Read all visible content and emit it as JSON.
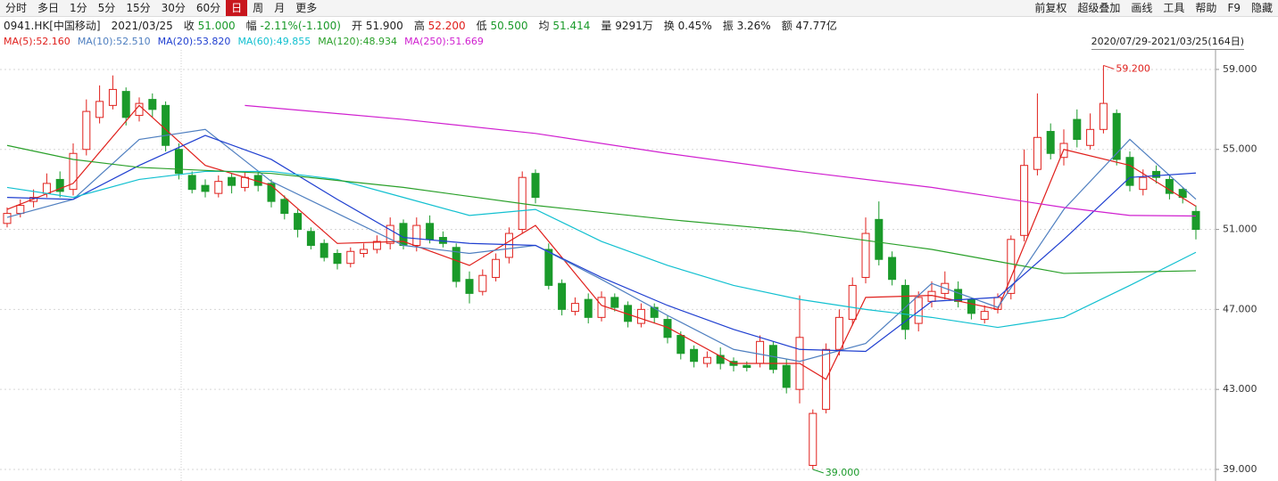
{
  "toolbar": {
    "left": [
      "分时",
      "多日",
      "1分",
      "5分",
      "15分",
      "30分",
      "60分",
      "日",
      "周",
      "月",
      "更多"
    ],
    "selected_index": 7,
    "right": [
      "前复权",
      "超级叠加",
      "画线",
      "工具",
      "帮助",
      "F9",
      "隐藏"
    ]
  },
  "quote": {
    "symbol": "0941.HK[中国移动]",
    "date": "2021/03/25",
    "fields": [
      {
        "label": "收",
        "value": "51.000",
        "color": "#1a9a2a"
      },
      {
        "label": "幅",
        "value": "-2.11%(-1.100)",
        "color": "#1a9a2a"
      },
      {
        "label": "开",
        "value": "51.900",
        "color": "#222222"
      },
      {
        "label": "高",
        "value": "52.200",
        "color": "#e0201c"
      },
      {
        "label": "低",
        "value": "50.500",
        "color": "#1a9a2a"
      },
      {
        "label": "均",
        "value": "51.414",
        "color": "#1a9a2a"
      },
      {
        "label": "量",
        "value": "9291万",
        "color": "#222222"
      },
      {
        "label": "换",
        "value": "0.45%",
        "color": "#222222"
      },
      {
        "label": "振",
        "value": "3.26%",
        "color": "#222222"
      },
      {
        "label": "额",
        "value": "47.77亿",
        "color": "#222222"
      }
    ]
  },
  "chart_data": {
    "type": "candlestick",
    "range_label": "2020/07/29-2021/03/25(164日)",
    "ylim": [
      38.42,
      59.71
    ],
    "yticks": [
      {
        "value": 39,
        "label": "39.000"
      },
      {
        "value": 43,
        "label": "43.000"
      },
      {
        "value": 47,
        "label": "47.000"
      },
      {
        "value": 51,
        "label": "51.000"
      },
      {
        "value": 55,
        "label": "55.000"
      },
      {
        "value": 59,
        "label": "59.000"
      }
    ],
    "grid": true,
    "up_color": "#e0201c",
    "down_color": "#1a9a2a",
    "open": [
      51.3,
      51.8,
      52.4,
      52.8,
      53.5,
      53.0,
      55.0,
      56.6,
      57.2,
      57.9,
      56.7,
      57.5,
      57.2,
      55.0,
      53.7,
      53.2,
      52.8,
      53.6,
      53.1,
      53.7,
      53.3,
      52.5,
      51.8,
      50.9,
      50.3,
      49.8,
      49.3,
      49.8,
      50.0,
      50.3,
      51.3,
      50.2,
      51.3,
      50.6,
      50.1,
      48.5,
      47.9,
      48.6,
      49.6,
      51.0,
      53.8,
      50.0,
      48.3,
      46.9,
      47.5,
      46.6,
      47.6,
      47.2,
      46.3,
      47.1,
      46.5,
      45.7,
      45.0,
      44.3,
      44.7,
      44.4,
      44.2,
      44.3,
      45.2,
      44.2,
      43.0,
      39.2,
      42.0,
      45.0,
      46.5,
      48.6,
      51.5,
      49.6,
      48.2,
      46.3,
      47.4,
      47.8,
      48.0,
      47.5,
      46.5,
      47.0,
      47.8,
      50.7,
      54.0,
      55.9,
      54.6,
      56.5,
      55.2,
      56.0,
      56.8,
      54.6,
      53.0,
      53.9,
      53.5,
      53.0,
      51.9
    ],
    "high": [
      52.1,
      52.5,
      53.0,
      53.8,
      53.9,
      55.3,
      57.5,
      58.2,
      58.7,
      58.1,
      57.6,
      57.8,
      57.4,
      55.3,
      53.9,
      53.5,
      53.7,
      53.8,
      53.9,
      53.9,
      53.5,
      52.7,
      52.0,
      51.1,
      50.5,
      50.0,
      50.1,
      50.3,
      50.7,
      51.6,
      51.5,
      51.6,
      51.7,
      50.9,
      50.3,
      48.9,
      49.0,
      49.8,
      51.1,
      53.9,
      54.0,
      50.3,
      48.5,
      47.6,
      47.8,
      47.9,
      47.8,
      47.4,
      47.3,
      47.3,
      46.7,
      45.9,
      45.2,
      44.9,
      45.1,
      44.6,
      44.4,
      45.7,
      45.4,
      44.5,
      47.7,
      42.0,
      45.3,
      47.0,
      48.6,
      51.6,
      52.4,
      49.9,
      48.5,
      47.9,
      48.4,
      48.9,
      48.4,
      47.6,
      47.2,
      47.8,
      50.7,
      55.0,
      57.8,
      56.3,
      56.0,
      57.0,
      56.8,
      59.2,
      57.0,
      54.9,
      54.0,
      54.2,
      53.7,
      53.1,
      52.2
    ],
    "low": [
      51.1,
      51.6,
      52.1,
      52.6,
      52.6,
      52.7,
      54.7,
      56.3,
      57.0,
      56.2,
      56.4,
      56.6,
      54.9,
      53.5,
      52.8,
      52.6,
      52.6,
      52.8,
      52.9,
      52.9,
      52.1,
      51.5,
      50.6,
      50.0,
      49.4,
      49.0,
      49.1,
      49.6,
      49.8,
      50.0,
      50.0,
      49.9,
      50.3,
      50.1,
      48.1,
      47.3,
      47.7,
      48.4,
      49.3,
      50.8,
      52.3,
      48.0,
      46.7,
      46.7,
      46.3,
      46.4,
      46.9,
      46.1,
      46.1,
      46.3,
      45.3,
      44.5,
      44.1,
      44.1,
      44.0,
      43.9,
      43.9,
      44.1,
      43.8,
      42.8,
      42.3,
      39.0,
      41.8,
      44.7,
      46.2,
      48.3,
      49.2,
      48.2,
      45.5,
      45.9,
      47.1,
      47.5,
      47.1,
      46.5,
      46.3,
      46.8,
      47.5,
      50.4,
      53.7,
      54.5,
      54.2,
      55.1,
      55.0,
      55.8,
      54.2,
      52.9,
      52.7,
      53.3,
      52.5,
      52.3,
      50.5
    ],
    "close": [
      51.8,
      52.2,
      52.6,
      53.3,
      52.9,
      54.8,
      56.9,
      57.4,
      58.0,
      56.6,
      57.3,
      57.0,
      55.2,
      53.8,
      53.0,
      52.9,
      53.4,
      53.2,
      53.6,
      53.2,
      52.4,
      51.8,
      51.0,
      50.2,
      49.6,
      49.3,
      49.9,
      50.0,
      50.4,
      51.2,
      50.2,
      51.2,
      50.5,
      50.3,
      48.4,
      47.8,
      48.7,
      49.5,
      50.8,
      53.6,
      52.6,
      48.2,
      47.0,
      47.3,
      46.6,
      47.6,
      47.1,
      46.4,
      47.0,
      46.6,
      45.6,
      44.8,
      44.4,
      44.6,
      44.3,
      44.2,
      44.1,
      45.4,
      44.0,
      43.1,
      45.6,
      41.8,
      45.0,
      46.6,
      48.2,
      50.8,
      49.5,
      48.5,
      46.0,
      47.6,
      47.9,
      48.3,
      47.4,
      46.8,
      46.9,
      47.6,
      50.5,
      54.2,
      55.6,
      54.8,
      55.3,
      55.5,
      56.0,
      57.3,
      54.5,
      53.2,
      53.6,
      53.6,
      52.8,
      52.6,
      51.0
    ],
    "series": [
      {
        "name": "MA(5):",
        "latest_label": "52.160",
        "color": "#e0201c",
        "x": [
          0,
          5,
          10,
          15,
          20,
          25,
          30,
          35,
          40,
          45,
          50,
          55,
          60,
          62,
          65,
          70,
          75,
          80,
          85,
          90
        ],
        "values": [
          52.0,
          53.3,
          57.2,
          54.2,
          53.2,
          50.3,
          50.4,
          49.2,
          51.2,
          47.2,
          46.1,
          44.3,
          44.3,
          43.5,
          47.6,
          47.7,
          47.0,
          55.0,
          54.2,
          52.16
        ]
      },
      {
        "name": "MA(10):",
        "latest_label": "52.510",
        "color": "#4f7fc0",
        "x": [
          0,
          5,
          10,
          15,
          20,
          25,
          30,
          35,
          40,
          45,
          50,
          55,
          60,
          65,
          70,
          75,
          80,
          85,
          90
        ],
        "values": [
          51.6,
          52.5,
          55.5,
          56.0,
          53.4,
          51.8,
          50.2,
          49.8,
          50.2,
          48.5,
          46.7,
          45.0,
          44.4,
          45.3,
          48.3,
          47.1,
          52.0,
          55.5,
          52.51
        ]
      },
      {
        "name": "MA(20):",
        "latest_label": "53.820",
        "color": "#1f3fd0",
        "x": [
          0,
          5,
          10,
          15,
          20,
          25,
          30,
          35,
          40,
          45,
          50,
          55,
          60,
          65,
          70,
          75,
          80,
          85,
          90
        ],
        "values": [
          52.6,
          52.5,
          54.2,
          55.7,
          54.5,
          52.5,
          50.6,
          50.3,
          50.2,
          48.6,
          47.2,
          46.0,
          45.0,
          44.9,
          47.4,
          47.6,
          50.5,
          53.6,
          53.82
        ]
      },
      {
        "name": "MA(60):",
        "latest_label": "49.855",
        "color": "#12c0d0",
        "x": [
          0,
          5,
          10,
          15,
          20,
          25,
          30,
          35,
          40,
          45,
          50,
          55,
          60,
          65,
          70,
          75,
          80,
          85,
          90
        ],
        "values": [
          53.1,
          52.6,
          53.5,
          53.9,
          53.9,
          53.5,
          52.6,
          51.7,
          52.0,
          50.4,
          49.2,
          48.2,
          47.5,
          47.0,
          46.6,
          46.1,
          46.6,
          48.2,
          49.855
        ]
      },
      {
        "name": "MA(120):",
        "latest_label": "48.934",
        "color": "#2aa02a",
        "x": [
          0,
          5,
          10,
          20,
          30,
          40,
          50,
          60,
          70,
          75,
          80,
          90
        ],
        "values": [
          55.2,
          54.5,
          54.1,
          53.8,
          53.1,
          52.2,
          51.5,
          50.9,
          50.0,
          49.4,
          48.8,
          48.934
        ]
      },
      {
        "name": "MA(250):",
        "latest_label": "51.669",
        "color": "#d020d0",
        "x": [
          18,
          30,
          40,
          50,
          60,
          70,
          80,
          85,
          90
        ],
        "values": [
          57.2,
          56.5,
          55.8,
          54.8,
          53.9,
          53.1,
          52.1,
          51.7,
          51.669
        ]
      }
    ],
    "annotations": [
      {
        "candle": 83,
        "value": 59.2,
        "label": "59.200",
        "color": "#e0201c"
      },
      {
        "candle": 61,
        "value": 39.0,
        "label": "39.000",
        "color": "#1a9a2a"
      }
    ]
  }
}
